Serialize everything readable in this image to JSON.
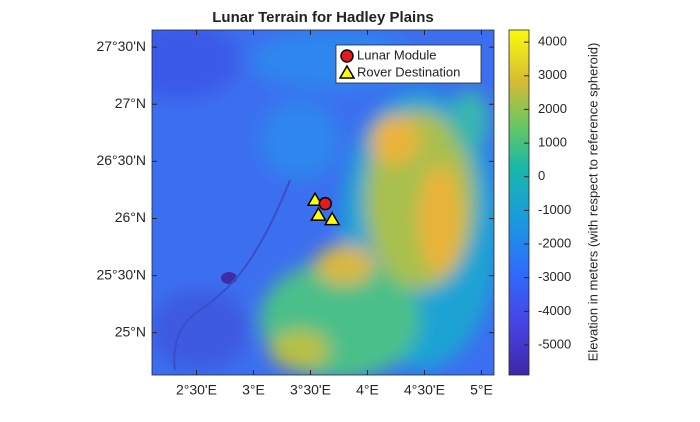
{
  "chart_data": {
    "type": "scatter",
    "title": "Lunar Terrain for Hadley Plains",
    "xlim": [
      2.11,
      5.11
    ],
    "xticks": [
      {
        "value": 2.5,
        "label": "2°30'E"
      },
      {
        "value": 3,
        "label": "3°E"
      },
      {
        "value": 3.5,
        "label": "3°30'E"
      },
      {
        "value": 4,
        "label": "4°E"
      },
      {
        "value": 4.5,
        "label": "4°30'E"
      },
      {
        "value": 5,
        "label": "5°E"
      }
    ],
    "ylim": [
      24.63,
      27.65
    ],
    "yticks": [
      {
        "value": 25,
        "label": "25°N"
      },
      {
        "value": 25.5,
        "label": "25°30'N"
      },
      {
        "value": 26,
        "label": "26°N"
      },
      {
        "value": 26.5,
        "label": "26°30'N"
      },
      {
        "value": 27,
        "label": "27°N"
      },
      {
        "value": 27.5,
        "label": "27°30'N"
      }
    ],
    "series": [
      {
        "name": "Lunar Module",
        "color": "#e41a1c",
        "marker": "circle",
        "x": [
          3.63
        ],
        "values": [
          26.13
        ]
      },
      {
        "name": "Rover Destination",
        "color": "#ffff00",
        "marker": "triangle",
        "x": [
          3.54,
          3.57,
          3.69
        ],
        "values": [
          26.16,
          26.03,
          25.99
        ]
      }
    ],
    "colorbar": {
      "label": "Elevation in meters (with respect to reference spheroid)",
      "clim": [
        -5890,
        4360
      ],
      "ticks": [
        -5000,
        -4000,
        -3000,
        -2000,
        -1000,
        0,
        1000,
        2000,
        3000,
        4000
      ]
    }
  }
}
